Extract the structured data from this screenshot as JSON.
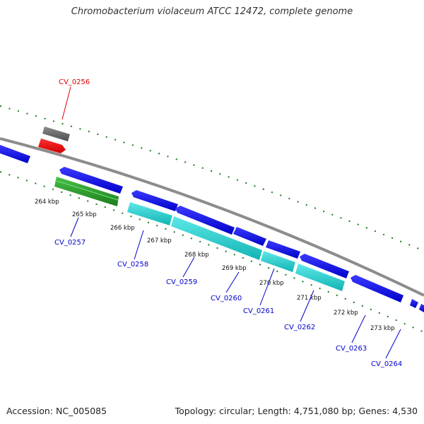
{
  "title": "Chromobacterium violaceum ATCC 12472, complete genome",
  "footer": {
    "accession": "Accession: NC_005085",
    "summary": "Topology: circular; Length: 4,751,080 bp; Genes: 4,530"
  },
  "colors": {
    "backbone": "#8c8c8c",
    "forward_gene": "#0000ee",
    "reverse_gene": "#0000ee",
    "highlight_gene": "#ff0000",
    "pseudo_gene": "#666666",
    "rna": "#2aa02a",
    "cds_feature": "#1ec8c8",
    "gc_ticks": "#1e7a1e",
    "label_line": "#0000cc",
    "highlight_label": "#e00000"
  },
  "scale_labels": [
    "264 kbp",
    "265 kbp",
    "266 kbp",
    "267 kbp",
    "268 kbp",
    "269 kbp",
    "270 kbp",
    "271 kbp",
    "272 kbp",
    "273 kbp"
  ],
  "gene_labels": [
    {
      "name": "CV_0256",
      "highlight": true
    },
    {
      "name": "CV_0257",
      "highlight": false
    },
    {
      "name": "CV_0258",
      "highlight": false
    },
    {
      "name": "CV_0259",
      "highlight": false
    },
    {
      "name": "CV_0260",
      "highlight": false
    },
    {
      "name": "CV_0261",
      "highlight": false
    },
    {
      "name": "CV_0262",
      "highlight": false
    },
    {
      "name": "CV_0263",
      "highlight": false
    },
    {
      "name": "CV_0264",
      "highlight": false
    }
  ]
}
